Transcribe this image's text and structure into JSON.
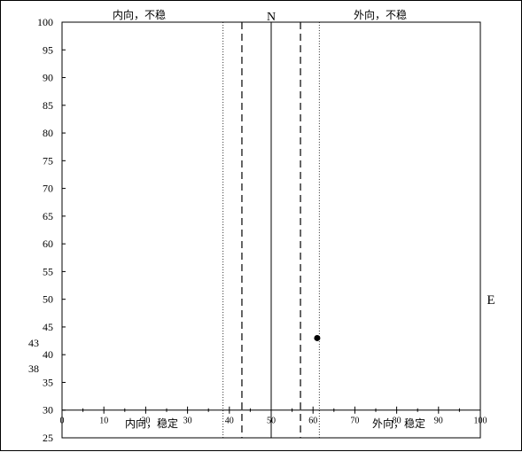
{
  "chart_data": {
    "type": "scatter",
    "title": "",
    "xlabel": "E",
    "ylabel": "",
    "top_center_label": "N",
    "xlim": [
      0,
      100
    ],
    "ylim": [
      25,
      100
    ],
    "x_axis_crosses_y_at": 30,
    "x_ticks": [
      0,
      10,
      20,
      30,
      40,
      50,
      60,
      70,
      80,
      90,
      100
    ],
    "y_ticks": [
      25,
      30,
      35,
      40,
      45,
      50,
      55,
      60,
      65,
      70,
      75,
      80,
      85,
      90,
      95,
      100
    ],
    "extra_left_labels": [
      "43",
      "38"
    ],
    "points": [
      {
        "x": 61,
        "y": 43
      }
    ],
    "reference_lines": [
      {
        "x": 38.5,
        "style": "dotted"
      },
      {
        "x": 43,
        "style": "dashed"
      },
      {
        "x": 50,
        "style": "solid"
      },
      {
        "x": 57,
        "style": "dashed"
      },
      {
        "x": 61.5,
        "style": "dotted"
      }
    ],
    "region_labels": {
      "top_left": "内向，不稳",
      "top_right": "外向，不稳",
      "bottom_left": "内向，稳定",
      "bottom_right": "外向，稳定"
    },
    "grid": false
  }
}
